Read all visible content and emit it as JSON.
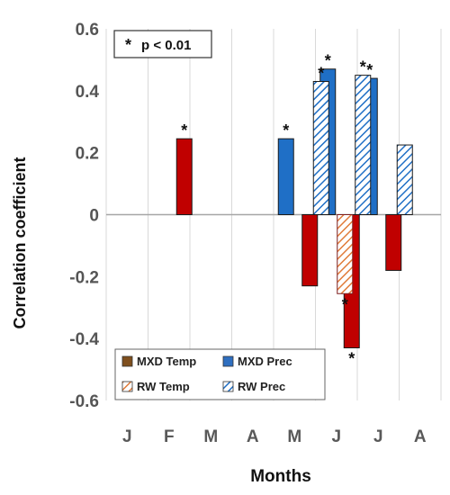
{
  "chart_data": {
    "type": "bar",
    "title": "",
    "xlabel": "Months",
    "ylabel": "Correlation coefficient",
    "categories": [
      "J",
      "F",
      "M",
      "A",
      "M",
      "J",
      "J",
      "A"
    ],
    "ylim": [
      -0.6,
      0.6
    ],
    "y_ticks": [
      "0.6",
      "0.4",
      "0.2",
      "0",
      "-0.2",
      "-0.4",
      "-0.6"
    ],
    "y_tick_values": [
      0.6,
      0.4,
      0.2,
      0.0,
      -0.2,
      -0.4,
      -0.6
    ],
    "grid": "vertical",
    "significance_note": "p < 0.01",
    "significance_marker": "*",
    "series": [
      {
        "name": "MXD Temp",
        "color": "#c00000",
        "legend_color": "#7f4f1e",
        "pattern": "solid",
        "slot": 0,
        "values": [
          null,
          null,
          0.245,
          null,
          null,
          -0.23,
          -0.43,
          -0.18
        ],
        "significant": [
          false,
          false,
          true,
          false,
          false,
          false,
          true,
          false
        ]
      },
      {
        "name": "MXD Prec",
        "color": "#1f6fc6",
        "legend_color": "#2f6fc0",
        "pattern": "solid",
        "slot": 1,
        "values": [
          null,
          null,
          null,
          null,
          0.245,
          0.47,
          0.44,
          null
        ],
        "significant": [
          false,
          false,
          false,
          false,
          true,
          true,
          true,
          false
        ]
      },
      {
        "name": "RW Temp",
        "color": "#c0504d",
        "legend_color": "#e07b39",
        "pattern": "hatch",
        "slot": 2,
        "values": [
          null,
          null,
          null,
          null,
          null,
          -0.255,
          null,
          null
        ],
        "significant": [
          false,
          false,
          false,
          false,
          false,
          true,
          false,
          false
        ]
      },
      {
        "name": "RW Prec",
        "color": "#1f6fc6",
        "legend_color": "#4f81bd",
        "pattern": "hatch",
        "slot": 3,
        "values": [
          null,
          null,
          null,
          null,
          0.43,
          0.45,
          0.225,
          null
        ],
        "significant": [
          false,
          false,
          false,
          false,
          true,
          true,
          false,
          false
        ]
      }
    ],
    "legend": {
      "position": "bottom-center",
      "items": [
        "MXD Temp",
        "MXD Prec",
        "RW Temp",
        "RW Prec"
      ]
    }
  }
}
